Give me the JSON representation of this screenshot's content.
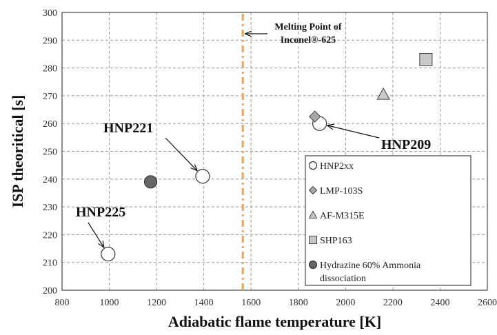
{
  "chart_data": {
    "type": "scatter",
    "xlabel": "Adiabatic flame temperature [K]",
    "ylabel": "ISP theoritical [s]",
    "xlim": [
      800,
      2600
    ],
    "ylim": [
      200,
      300
    ],
    "x_ticks": [
      "800",
      "1000",
      "1200",
      "1400",
      "1600",
      "1800",
      "2000",
      "2200",
      "2400",
      "2600"
    ],
    "y_ticks": [
      "200",
      "210",
      "220",
      "230",
      "240",
      "250",
      "260",
      "270",
      "280",
      "290",
      "300"
    ],
    "grid": true,
    "legend_position": "bottom-right",
    "series": [
      {
        "name": "HNP2xx",
        "marker": "circle-open",
        "points": [
          {
            "x": 995,
            "y": 213
          },
          {
            "x": 1395,
            "y": 241
          },
          {
            "x": 1890,
            "y": 260
          }
        ]
      },
      {
        "name": "LMP-103S",
        "marker": "diamond",
        "points": [
          {
            "x": 1870,
            "y": 262.5
          }
        ]
      },
      {
        "name": "AF-M315E",
        "marker": "triangle",
        "points": [
          {
            "x": 2160,
            "y": 270.5
          }
        ]
      },
      {
        "name": "SHP163",
        "marker": "square",
        "points": [
          {
            "x": 2340,
            "y": 283
          }
        ]
      },
      {
        "name": "Hydrazine 60% Ammonia dissociation",
        "marker": "circle-filled",
        "points": [
          {
            "x": 1175,
            "y": 239
          }
        ]
      }
    ],
    "reference_line": {
      "x": 1565,
      "label_line1": "Melting Point of",
      "label_line2": "Inconel®-625",
      "color": "#f0a050"
    },
    "annotations": [
      {
        "text": "HNP225",
        "target": {
          "x": 995,
          "y": 213
        }
      },
      {
        "text": "HNP221",
        "target": {
          "x": 1395,
          "y": 241
        }
      },
      {
        "text": "HNP209",
        "target": {
          "x": 1890,
          "y": 260
        }
      }
    ],
    "colors": {
      "open": "#ffffff",
      "diamond": "#a8a8a8",
      "triangle": "#c8c8c8",
      "square": "#c8c8c8",
      "filled": "#666666"
    }
  }
}
